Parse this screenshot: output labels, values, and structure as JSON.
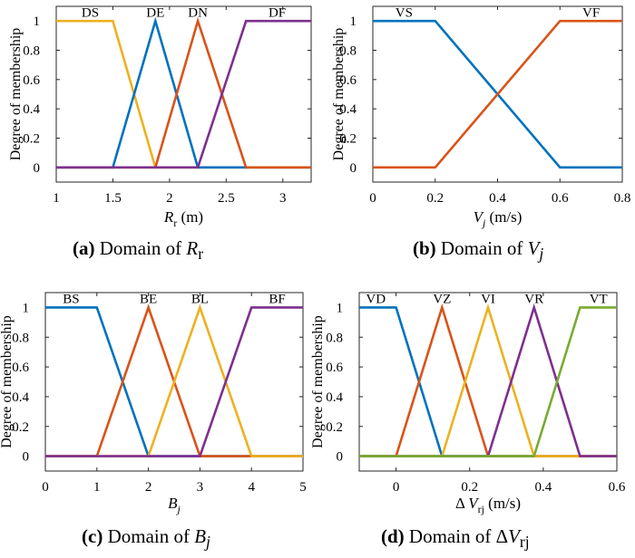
{
  "chart_data": [
    {
      "type": "line",
      "panel": "a",
      "caption": {
        "tag": "(a)",
        "text": "Domain of ",
        "math_main": "R",
        "math_sub": "r"
      },
      "ylabel": "Degree of membership",
      "xlabel": {
        "main": "R",
        "sub": "r",
        "suffix": " (m)"
      },
      "xlim": [
        1,
        3.25
      ],
      "ylim": [
        -0.1,
        1.1
      ],
      "xticks": [
        1,
        1.5,
        2,
        2.5,
        3
      ],
      "xtick_labels": [
        "1",
        "1.5",
        "2",
        "2.5",
        "3"
      ],
      "yticks": [
        0,
        0.2,
        0.4,
        0.6,
        0.8,
        1
      ],
      "ytick_labels": [
        "0",
        "0.2",
        "0.4",
        "0.6",
        "0.8",
        "1"
      ],
      "grid": false,
      "series": [
        {
          "name": "DS",
          "color": "#EDB120",
          "x": [
            1,
            1.5,
            1.875,
            3.25
          ],
          "y": [
            1,
            1,
            0,
            0
          ]
        },
        {
          "name": "DE",
          "color": "#0072BD",
          "x": [
            1,
            1.5,
            1.875,
            2.25,
            3.25
          ],
          "y": [
            0,
            0,
            1,
            0,
            0
          ]
        },
        {
          "name": "DN",
          "color": "#D95319",
          "x": [
            1,
            1.875,
            2.25,
            2.675,
            3.25
          ],
          "y": [
            0,
            0,
            1,
            0,
            0
          ]
        },
        {
          "name": "DF",
          "color": "#7E2F8E",
          "x": [
            1,
            2.25,
            2.675,
            3.25
          ],
          "y": [
            0,
            0,
            1,
            1
          ]
        }
      ],
      "annotations": [
        {
          "text": "DS",
          "x": 1.3,
          "y": 1.03
        },
        {
          "text": "DE",
          "x": 1.875,
          "y": 1.03
        },
        {
          "text": "DN",
          "x": 2.25,
          "y": 1.03
        },
        {
          "text": "DF",
          "x": 2.95,
          "y": 1.03
        }
      ]
    },
    {
      "type": "line",
      "panel": "b",
      "caption": {
        "tag": "(b)",
        "text": "Domain of ",
        "math_main": "V",
        "math_sub": "j"
      },
      "ylabel": "Degree of membership",
      "xlabel": {
        "main": "V",
        "sub": "j",
        "suffix": " (m/s)"
      },
      "xlim": [
        0,
        0.8
      ],
      "ylim": [
        -0.1,
        1.1
      ],
      "xticks": [
        0,
        0.2,
        0.4,
        0.6,
        0.8
      ],
      "xtick_labels": [
        "0",
        "0.2",
        "0.4",
        "0.6",
        "0.8"
      ],
      "yticks": [
        0,
        0.2,
        0.4,
        0.6,
        0.8,
        1
      ],
      "ytick_labels": [
        "0",
        "0.2",
        "0.4",
        "0.6",
        "0.8",
        "1"
      ],
      "grid": false,
      "series": [
        {
          "name": "VS",
          "color": "#0072BD",
          "x": [
            0,
            0.2,
            0.6,
            0.8
          ],
          "y": [
            1,
            1,
            0,
            0
          ]
        },
        {
          "name": "VF",
          "color": "#D95319",
          "x": [
            0,
            0.2,
            0.6,
            0.8
          ],
          "y": [
            0,
            0,
            1,
            1
          ]
        }
      ],
      "annotations": [
        {
          "text": "VS",
          "x": 0.1,
          "y": 1.03
        },
        {
          "text": "VF",
          "x": 0.7,
          "y": 1.03
        }
      ]
    },
    {
      "type": "line",
      "panel": "c",
      "caption": {
        "tag": "(c)",
        "text": "Domain of ",
        "math_main": "B",
        "math_sub": "j"
      },
      "ylabel": "Degree of membership",
      "xlabel": {
        "main": "B",
        "sub": "j",
        "suffix": ""
      },
      "xlim": [
        0,
        5
      ],
      "ylim": [
        -0.1,
        1.1
      ],
      "xticks": [
        0,
        1,
        2,
        3,
        4,
        5
      ],
      "xtick_labels": [
        "0",
        "1",
        "2",
        "3",
        "4",
        "5"
      ],
      "yticks": [
        0,
        0.2,
        0.4,
        0.6,
        0.8,
        1
      ],
      "ytick_labels": [
        "0",
        "0.2",
        "0.4",
        "0.6",
        "0.8",
        "1"
      ],
      "grid": false,
      "series": [
        {
          "name": "BS",
          "color": "#0072BD",
          "x": [
            0,
            1,
            2,
            5
          ],
          "y": [
            1,
            1,
            0,
            0
          ]
        },
        {
          "name": "BE",
          "color": "#D95319",
          "x": [
            0,
            1,
            2,
            3,
            5
          ],
          "y": [
            0,
            0,
            1,
            0,
            0
          ]
        },
        {
          "name": "BL",
          "color": "#EDB120",
          "x": [
            0,
            2,
            3,
            4,
            5
          ],
          "y": [
            0,
            0,
            1,
            0,
            0
          ]
        },
        {
          "name": "BF",
          "color": "#7E2F8E",
          "x": [
            0,
            3,
            4,
            5
          ],
          "y": [
            0,
            0,
            1,
            1
          ]
        }
      ],
      "annotations": [
        {
          "text": "BS",
          "x": 0.5,
          "y": 1.03
        },
        {
          "text": "BE",
          "x": 2,
          "y": 1.03
        },
        {
          "text": "BL",
          "x": 3,
          "y": 1.03
        },
        {
          "text": "BF",
          "x": 4.5,
          "y": 1.03
        }
      ]
    },
    {
      "type": "line",
      "panel": "d",
      "caption": {
        "tag": "(d)",
        "text": "Domain of ",
        "math_prefix": "Δ",
        "math_main": "V",
        "math_sub": "rj"
      },
      "ylabel": "Degree of membership",
      "xlabel": {
        "prefix": "Δ ",
        "main": "V",
        "sub": "rj",
        "suffix": " (m/s)"
      },
      "xlim": [
        -0.1,
        0.6
      ],
      "ylim": [
        -0.1,
        1.1
      ],
      "xticks": [
        0,
        0.2,
        0.4,
        0.6
      ],
      "xtick_labels": [
        "0",
        "0.2",
        "0.4",
        "0.6"
      ],
      "yticks": [
        0,
        0.2,
        0.4,
        0.6,
        0.8,
        1
      ],
      "ytick_labels": [
        "0",
        "0.2",
        "0.4",
        "0.6",
        "0.8",
        "1"
      ],
      "grid": false,
      "series": [
        {
          "name": "VD",
          "color": "#0072BD",
          "x": [
            -0.1,
            0,
            0.125,
            0.6
          ],
          "y": [
            1,
            1,
            0,
            0
          ]
        },
        {
          "name": "VZ",
          "color": "#D95319",
          "x": [
            -0.1,
            0,
            0.125,
            0.25,
            0.6
          ],
          "y": [
            0,
            0,
            1,
            0,
            0
          ]
        },
        {
          "name": "VI",
          "color": "#EDB120",
          "x": [
            -0.1,
            0.125,
            0.25,
            0.375,
            0.6
          ],
          "y": [
            0,
            0,
            1,
            0,
            0
          ]
        },
        {
          "name": "VR",
          "color": "#7E2F8E",
          "x": [
            -0.1,
            0.25,
            0.375,
            0.5,
            0.6
          ],
          "y": [
            0,
            0,
            1,
            0,
            0
          ]
        },
        {
          "name": "VT",
          "color": "#77AC30",
          "x": [
            -0.1,
            0.375,
            0.5,
            0.6
          ],
          "y": [
            0,
            0,
            1,
            1
          ]
        }
      ],
      "annotations": [
        {
          "text": "VD",
          "x": -0.055,
          "y": 1.03
        },
        {
          "text": "VZ",
          "x": 0.125,
          "y": 1.03
        },
        {
          "text": "VI",
          "x": 0.25,
          "y": 1.03
        },
        {
          "text": "VR",
          "x": 0.375,
          "y": 1.03
        },
        {
          "text": "VT",
          "x": 0.55,
          "y": 1.03
        }
      ]
    }
  ]
}
